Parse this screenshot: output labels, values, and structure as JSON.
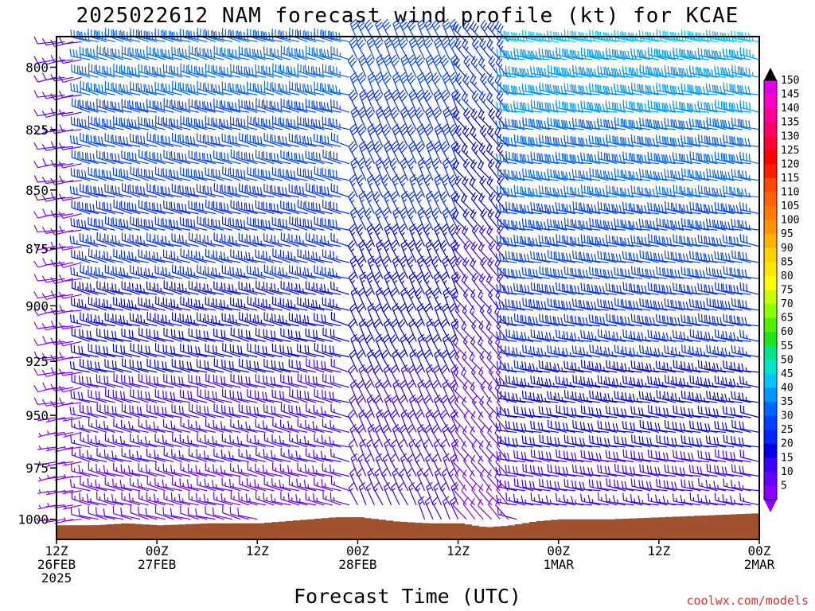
{
  "chart_data": {
    "type": "wind-barb-time-height",
    "title": "2025022612 NAM forecast wind profile (kt) for KCAE",
    "xlabel": "Forecast Time (UTC)",
    "ylabel": "",
    "y_scale": "log-pressure",
    "y_range_hpa": [
      1010,
      788
    ],
    "y_ticks": [
      800,
      825,
      850,
      875,
      900,
      925,
      950,
      975,
      1000
    ],
    "x_range_hours": [
      0,
      84
    ],
    "x_ticks": [
      {
        "hour": 0,
        "line1": "12Z",
        "line2": "26FEB",
        "line3": "2025"
      },
      {
        "hour": 12,
        "line1": "00Z",
        "line2": "27FEB",
        "line3": ""
      },
      {
        "hour": 24,
        "line1": "12Z",
        "line2": "",
        "line3": ""
      },
      {
        "hour": 36,
        "line1": "00Z",
        "line2": "28FEB",
        "line3": ""
      },
      {
        "hour": 48,
        "line1": "12Z",
        "line2": "",
        "line3": ""
      },
      {
        "hour": 60,
        "line1": "00Z",
        "line2": "1MAR",
        "line3": ""
      },
      {
        "hour": 72,
        "line1": "12Z",
        "line2": "",
        "line3": ""
      },
      {
        "hour": 84,
        "line1": "00Z",
        "line2": "2MAR",
        "line3": ""
      }
    ],
    "time_step_hours": 1,
    "pressure_step_hpa": 7,
    "colorbar": {
      "levels": [
        150,
        145,
        140,
        135,
        130,
        125,
        120,
        115,
        110,
        105,
        100,
        95,
        90,
        85,
        80,
        75,
        70,
        65,
        60,
        55,
        50,
        45,
        40,
        35,
        30,
        25,
        20,
        15,
        10,
        5
      ],
      "colors": [
        "#e400e4",
        "#ff00c8",
        "#ff0096",
        "#ff0064",
        "#ff0032",
        "#ff0000",
        "#ff1e00",
        "#ff4800",
        "#ff6400",
        "#ff7d00",
        "#ff9600",
        "#ffb400",
        "#ffd200",
        "#ffe600",
        "#ffff00",
        "#c8ff00",
        "#8cff00",
        "#50f000",
        "#1ee61e",
        "#00e68c",
        "#00e6c8",
        "#00c8ff",
        "#0096ff",
        "#0064ff",
        "#0040ff",
        "#0028ff",
        "#0000e6",
        "#3c00ff",
        "#6400ff",
        "#8c00ff"
      ]
    },
    "wind_regimes": [
      {
        "from_hour": 0,
        "to_hour": 4,
        "direction_deg": 260,
        "speed_kt_surface": 6,
        "speed_kt_top": 12
      },
      {
        "from_hour": 4,
        "to_hour": 36,
        "direction_deg": 285,
        "speed_kt_surface": 12,
        "speed_kt_top": 38
      },
      {
        "from_hour": 36,
        "to_hour": 49,
        "direction_deg": 335,
        "speed_kt_surface": 15,
        "speed_kt_top": 32
      },
      {
        "from_hour": 49,
        "to_hour": 55,
        "direction_deg": 320,
        "speed_kt_surface": 8,
        "speed_kt_top": 28
      },
      {
        "from_hour": 55,
        "to_hour": 84,
        "direction_deg": 280,
        "speed_kt_surface": 16,
        "speed_kt_top": 45
      }
    ],
    "terrain_surface_pressure_hpa": [
      {
        "hour": 0,
        "p": 1003
      },
      {
        "hour": 4,
        "p": 1003
      },
      {
        "hour": 8,
        "p": 1002
      },
      {
        "hour": 12,
        "p": 1003
      },
      {
        "hour": 18,
        "p": 1002
      },
      {
        "hour": 24,
        "p": 1002
      },
      {
        "hour": 30,
        "p": 1000
      },
      {
        "hour": 33,
        "p": 999
      },
      {
        "hour": 36,
        "p": 999
      },
      {
        "hour": 40,
        "p": 1001
      },
      {
        "hour": 44,
        "p": 1002
      },
      {
        "hour": 48,
        "p": 1002
      },
      {
        "hour": 51,
        "p": 1004
      },
      {
        "hour": 54,
        "p": 1003
      },
      {
        "hour": 57,
        "p": 1001
      },
      {
        "hour": 60,
        "p": 1000
      },
      {
        "hour": 66,
        "p": 1000
      },
      {
        "hour": 72,
        "p": 999
      },
      {
        "hour": 78,
        "p": 998
      },
      {
        "hour": 84,
        "p": 997
      }
    ]
  },
  "credit": "coolwx.com/models"
}
